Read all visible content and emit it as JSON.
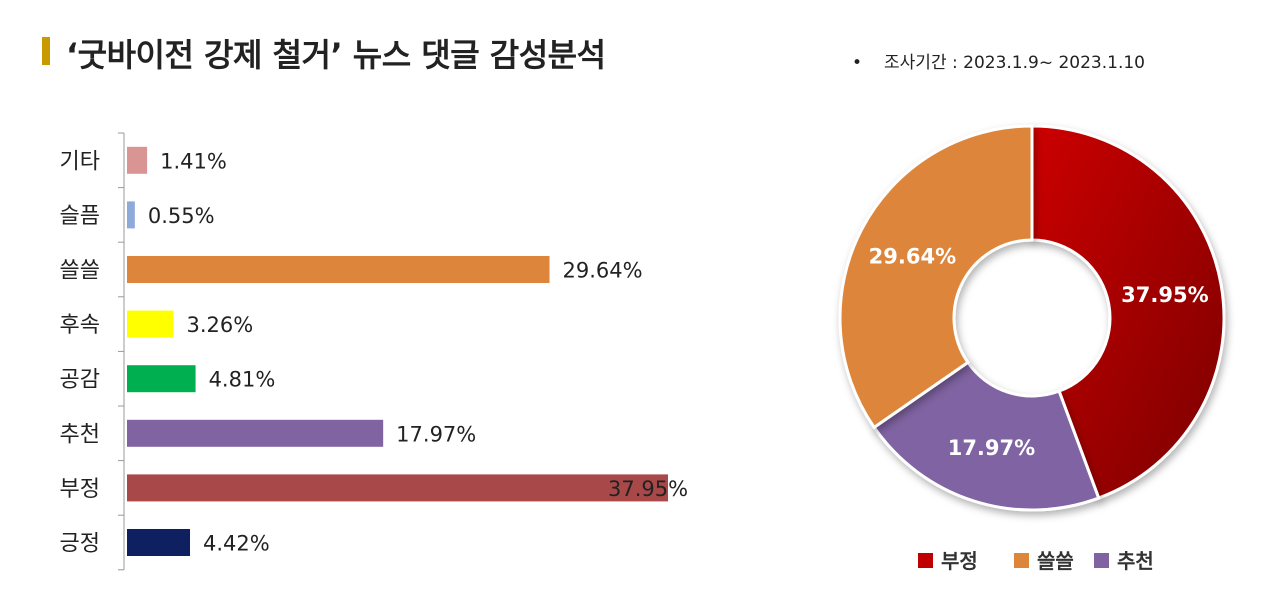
{
  "title": "‘굿바이전 강제 철거’ 뉴스 댓글 감성분석",
  "period": {
    "bullet": "•",
    "text": "조사기간 : 2023.1.9~  2023.1.10"
  },
  "colors": {
    "title_accent": "#c99a00"
  },
  "chart_data": [
    {
      "type": "bar",
      "orientation": "horizontal",
      "categories": [
        "기타",
        "슬픔",
        "쓸쓸",
        "후속",
        "공감",
        "추천",
        "부정",
        "긍정"
      ],
      "values": [
        1.41,
        0.55,
        29.64,
        3.26,
        4.81,
        17.97,
        37.95,
        4.42
      ],
      "labels": [
        "1.41%",
        "0.55%",
        "29.64%",
        "3.26%",
        "4.81%",
        "17.97%",
        "37.95%",
        "4.42%"
      ],
      "colors": [
        "#d99594",
        "#8eaadb",
        "#dd853b",
        "#ffff00",
        "#00b050",
        "#8064a2",
        "#a84848",
        "#0f2060"
      ],
      "unit": "%",
      "xlim": [
        0,
        37.95
      ]
    },
    {
      "type": "pie",
      "style": "donut",
      "slices": [
        {
          "name": "부정",
          "value": 37.95,
          "label": "37.95%",
          "color": "#c00000"
        },
        {
          "name": "추천",
          "value": 17.97,
          "label": "17.97%",
          "color": "#8064a2"
        },
        {
          "name": "쓸쓸",
          "value": 29.64,
          "label": "29.64%",
          "color": "#dd853b"
        }
      ],
      "legend": [
        "부정",
        "쓸쓸",
        "추천"
      ],
      "legend_placement": "bottom"
    }
  ]
}
